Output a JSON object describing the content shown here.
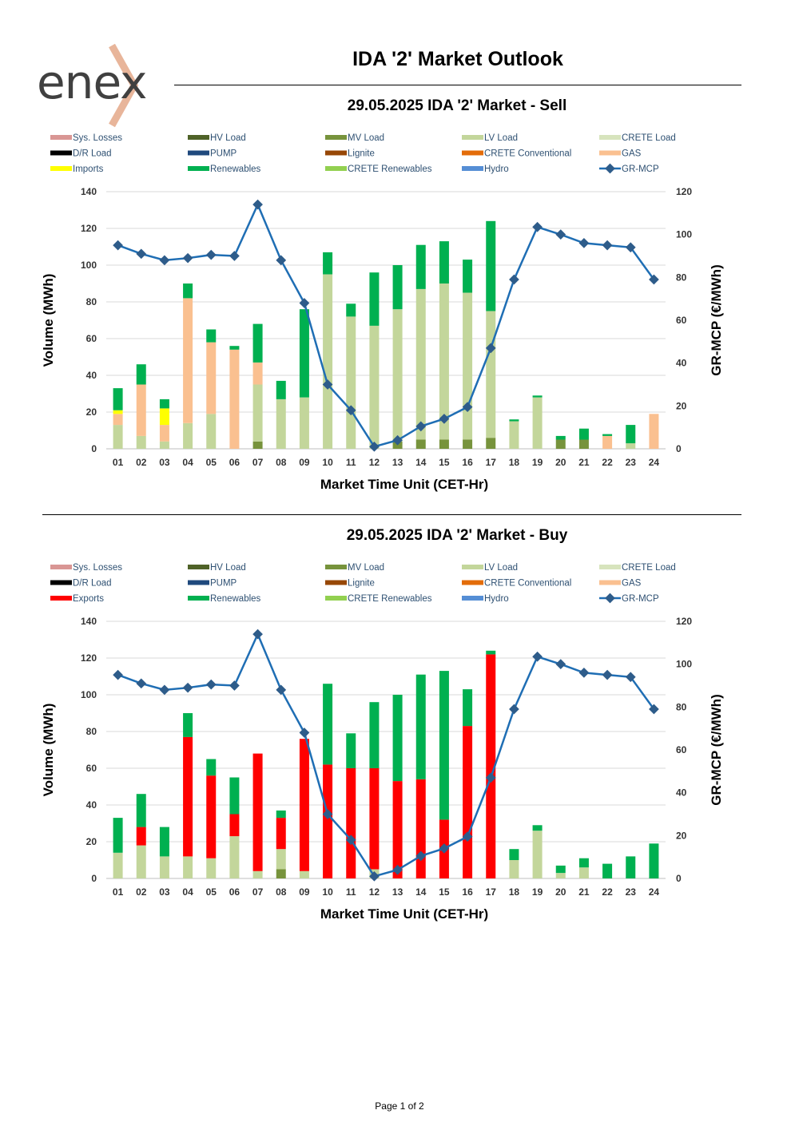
{
  "header": {
    "logo_text": "enex",
    "title": "IDA '2' Market Outlook",
    "footer": "Page 1 of 2"
  },
  "legend_colors": {
    "Sys. Losses": "#d99694",
    "HV Load": "#4f6228",
    "MV Load": "#77933c",
    "LV Load": "#c3d69b",
    "CRETE Load": "#d7e4bd",
    "D/R Load": "#000000",
    "PUMP": "#1f497d",
    "Lignite": "#974706",
    "CRETE Conventional": "#e36c09",
    "GAS": "#fac090",
    "Imports": "#ffff00",
    "Exports": "#ff0000",
    "Renewables": "#00b050",
    "CRETE Renewables": "#92d050",
    "Hydro": "#558ed5",
    "GR-MCP": "#1f6eb4"
  },
  "chart_data": [
    {
      "type": "bar",
      "title": "29.05.2025  IDA '2' Market - Sell",
      "xlabel": "Market Time Unit (CET-Hr)",
      "ylabel": "Volume (MWh)",
      "y2label": "GR-MCP (€/MWh)",
      "ylim": [
        0,
        140
      ],
      "y2lim": [
        0,
        120
      ],
      "yticks": [
        "0",
        "20",
        "40",
        "60",
        "80",
        "100",
        "120",
        "140"
      ],
      "y2ticks": [
        "0",
        "20",
        "40",
        "60",
        "80",
        "100",
        "120"
      ],
      "legend": [
        "Sys. Losses",
        "HV Load",
        "MV Load",
        "LV Load",
        "CRETE Load",
        "D/R Load",
        "PUMP",
        "Lignite",
        "CRETE Conventional",
        "GAS",
        "Imports",
        "Renewables",
        "CRETE Renewables",
        "Hydro",
        "GR-MCP"
      ],
      "categories": [
        "01",
        "02",
        "03",
        "04",
        "05",
        "06",
        "07",
        "08",
        "09",
        "10",
        "11",
        "12",
        "13",
        "14",
        "15",
        "16",
        "17",
        "18",
        "19",
        "20",
        "21",
        "22",
        "23",
        "24"
      ],
      "series": [
        {
          "name": "MV Load",
          "values": [
            0,
            0,
            0,
            0,
            0,
            0,
            4,
            0,
            0,
            0,
            0,
            0,
            4,
            5,
            5,
            5,
            6,
            0,
            0,
            5,
            5,
            0,
            0,
            0
          ]
        },
        {
          "name": "LV Load",
          "values": [
            13,
            7,
            4,
            14,
            19,
            0,
            31,
            27,
            28,
            95,
            72,
            67,
            72,
            82,
            85,
            80,
            69,
            15,
            28,
            0,
            0,
            0,
            3,
            0
          ]
        },
        {
          "name": "GAS",
          "values": [
            6,
            28,
            9,
            68,
            39,
            54,
            12,
            0,
            0,
            0,
            0,
            0,
            0,
            0,
            0,
            0,
            0,
            0,
            0,
            0,
            0,
            7,
            0,
            19
          ]
        },
        {
          "name": "Imports",
          "values": [
            2,
            0,
            9,
            0,
            0,
            0,
            0,
            0,
            0,
            0,
            0,
            0,
            0,
            0,
            0,
            0,
            0,
            0,
            0,
            0,
            0,
            0,
            0,
            0
          ]
        },
        {
          "name": "Renewables",
          "values": [
            12,
            11,
            5,
            8,
            7,
            2,
            21,
            10,
            48,
            12,
            7,
            29,
            24,
            24,
            23,
            18,
            49,
            1,
            1,
            2,
            6,
            1,
            10,
            0
          ]
        }
      ],
      "line": {
        "name": "GR-MCP",
        "values": [
          95,
          91,
          88,
          89,
          90.5,
          90,
          114,
          88,
          68,
          30,
          18,
          1,
          4,
          10.5,
          14,
          19.5,
          47,
          79,
          103.5,
          100,
          96,
          95,
          94,
          79
        ]
      }
    },
    {
      "type": "bar",
      "title": "29.05.2025  IDA '2' Market - Buy",
      "xlabel": "Market Time Unit (CET-Hr)",
      "ylabel": "Volume (MWh)",
      "y2label": "GR-MCP (€/MWh)",
      "ylim": [
        0,
        140
      ],
      "y2lim": [
        0,
        120
      ],
      "yticks": [
        "0",
        "20",
        "40",
        "60",
        "80",
        "100",
        "120",
        "140"
      ],
      "y2ticks": [
        "0",
        "20",
        "40",
        "60",
        "80",
        "100",
        "120"
      ],
      "legend": [
        "Sys. Losses",
        "HV Load",
        "MV Load",
        "LV Load",
        "CRETE Load",
        "D/R Load",
        "PUMP",
        "Lignite",
        "CRETE Conventional",
        "GAS",
        "Exports",
        "Renewables",
        "CRETE Renewables",
        "Hydro",
        "GR-MCP"
      ],
      "categories": [
        "01",
        "02",
        "03",
        "04",
        "05",
        "06",
        "07",
        "08",
        "09",
        "10",
        "11",
        "12",
        "13",
        "14",
        "15",
        "16",
        "17",
        "18",
        "19",
        "20",
        "21",
        "22",
        "23",
        "24"
      ],
      "series": [
        {
          "name": "MV Load",
          "values": [
            0,
            0,
            0,
            0,
            0,
            0,
            0,
            5,
            0,
            0,
            0,
            0,
            0,
            0,
            0,
            0,
            0,
            0,
            0,
            0,
            0,
            0,
            0,
            0
          ]
        },
        {
          "name": "LV Load",
          "values": [
            14,
            18,
            12,
            12,
            11,
            23,
            4,
            11,
            4,
            0,
            0,
            5,
            0,
            0,
            0,
            0,
            0,
            10,
            26,
            3,
            6,
            0,
            0,
            0
          ]
        },
        {
          "name": "Exports",
          "values": [
            0,
            10,
            0,
            65,
            45,
            12,
            64,
            17,
            72,
            62,
            60,
            55,
            53,
            54,
            32,
            83,
            122,
            0,
            0,
            0,
            0,
            0,
            0,
            0
          ]
        },
        {
          "name": "Renewables",
          "values": [
            19,
            18,
            16,
            13,
            9,
            20,
            0,
            4,
            0,
            44,
            19,
            36,
            47,
            57,
            81,
            20,
            2,
            6,
            3,
            4,
            5,
            8,
            12,
            19
          ]
        }
      ],
      "line": {
        "name": "GR-MCP",
        "values": [
          95,
          91,
          88,
          89,
          90.5,
          90,
          114,
          88,
          68,
          30,
          18,
          1,
          4,
          10.5,
          14,
          19.5,
          47,
          79,
          103.5,
          100,
          96,
          95,
          94,
          79
        ]
      }
    }
  ]
}
